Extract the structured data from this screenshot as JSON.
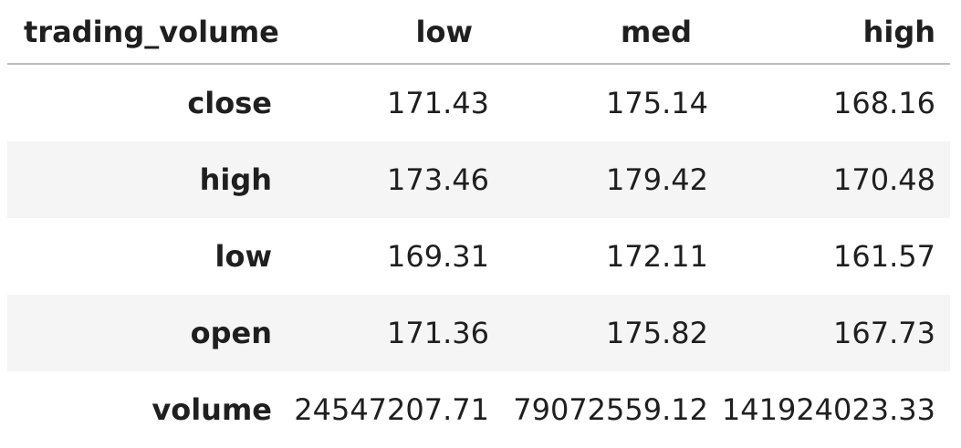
{
  "table": {
    "index_name": "trading_volume",
    "columns": [
      "low",
      "med",
      "high"
    ],
    "rows": [
      {
        "label": "close",
        "values": [
          "171.43",
          "175.14",
          "168.16"
        ]
      },
      {
        "label": "high",
        "values": [
          "173.46",
          "179.42",
          "170.48"
        ]
      },
      {
        "label": "low",
        "values": [
          "169.31",
          "172.11",
          "161.57"
        ]
      },
      {
        "label": "open",
        "values": [
          "171.36",
          "175.82",
          "167.73"
        ]
      },
      {
        "label": "volume",
        "values": [
          "24547207.71",
          "79072559.12",
          "141924023.33"
        ]
      }
    ]
  }
}
